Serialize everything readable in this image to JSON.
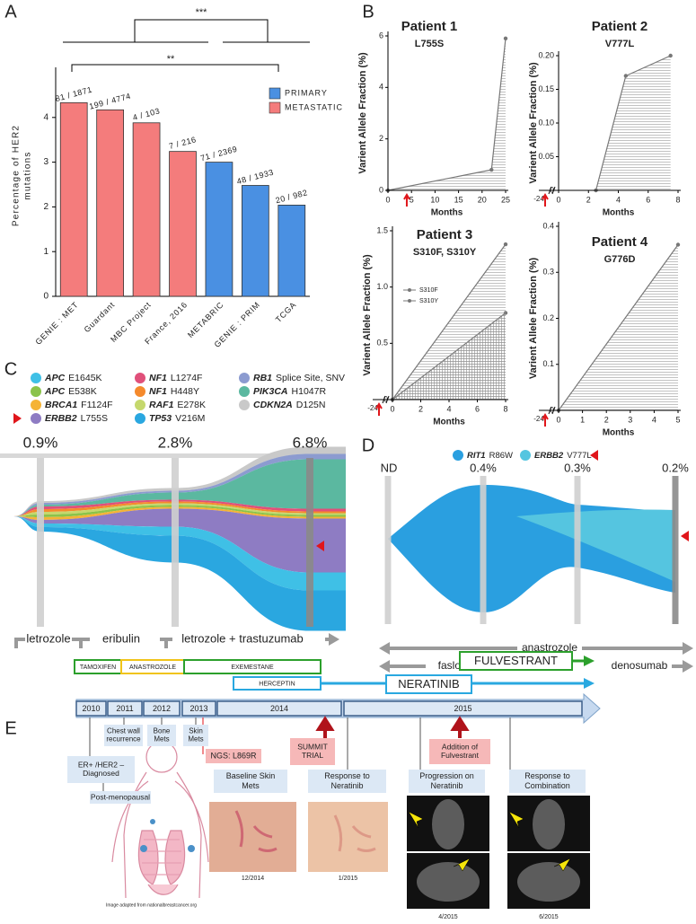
{
  "panel_labels": [
    "A",
    "B",
    "C",
    "D",
    "E"
  ],
  "chart_data": [
    {
      "type": "bar",
      "categories": [
        "GENIE : MET",
        "Guardant",
        "MBC Project",
        "France, 2016",
        "METABRIC",
        "GENIE : PRIM",
        "TCGA"
      ],
      "series": [
        {
          "name": "PRIMARY",
          "color": "#4a90e2",
          "values": [
            null,
            null,
            null,
            null,
            3.0,
            2.48,
            2.04
          ]
        },
        {
          "name": "METASTATIC",
          "color": "#f47c7c",
          "values": [
            4.33,
            4.17,
            3.88,
            3.24,
            null,
            null,
            null
          ]
        }
      ],
      "count_labels": [
        "81 / 1871",
        "199 / 4774",
        "4 / 103",
        "7 / 216",
        "71 / 2369",
        "48 / 1933",
        "20 / 982"
      ],
      "ylabel": [
        "Percentage of HER2",
        "mutations"
      ],
      "ylim": [
        0,
        5
      ],
      "yticks": [
        0,
        1,
        2,
        3,
        4
      ],
      "significance": [
        "***",
        "**"
      ],
      "legend_corner": "upper right"
    },
    {
      "type": "line",
      "title": "Patient 1",
      "subtitle": "L755S",
      "ylabel": "Varient Allele Fraction (%)",
      "xlabel": "Months",
      "xlim": [
        0,
        25
      ],
      "ylim": [
        0,
        6
      ],
      "xticks": [
        0,
        5,
        10,
        15,
        20,
        25
      ],
      "yticks": [
        0,
        2,
        4,
        6
      ],
      "series": [
        {
          "color": "#777777",
          "x": [
            0,
            22,
            25
          ],
          "values": [
            0,
            0.8,
            5.9
          ]
        }
      ]
    },
    {
      "type": "line",
      "title": "Patient 2",
      "subtitle": "V777L",
      "ylabel": "Varient Allele Fraction (%)",
      "xlabel": "Months",
      "break_label": "-24",
      "xlim": [
        0,
        8
      ],
      "ylim": [
        0,
        0.2
      ],
      "xticks": [
        0,
        2,
        4,
        6,
        8
      ],
      "yticks": [
        0,
        0.05,
        {
          "value": 0.1,
          "label": "0.10"
        },
        0.15,
        {
          "value": 0.2,
          "label": "0.20"
        }
      ],
      "series": [
        {
          "color": "#777777",
          "x": [
            2.5,
            4.5,
            7.5
          ],
          "values": [
            0,
            0.17,
            0.2
          ]
        }
      ]
    },
    {
      "type": "line",
      "title": "Patient 3",
      "subtitle": "S310F, S310Y",
      "ylabel": "Varient Allele Fraction (%)",
      "xlabel": "Months",
      "break_label": "-24",
      "xlim": [
        0,
        8
      ],
      "ylim": [
        0,
        1.5
      ],
      "xticks": [
        0,
        2,
        4,
        6,
        8
      ],
      "yticks": [
        0,
        0.5,
        {
          "value": 1,
          "label": "1.0"
        },
        1.5
      ],
      "series": [
        {
          "name": "S310F",
          "color": "#777777",
          "x": [
            0,
            8
          ],
          "values": [
            0,
            0.77
          ]
        },
        {
          "name": "S310Y",
          "color": "#777777",
          "x": [
            0,
            8
          ],
          "values": [
            0,
            1.38
          ]
        }
      ]
    },
    {
      "type": "line",
      "title": "Patient 4",
      "subtitle": "G776D",
      "ylabel": "Varient Allele Fraction (%)",
      "xlabel": "Months",
      "break_label": "-24",
      "xlim": [
        0,
        5
      ],
      "ylim": [
        0,
        0.4
      ],
      "xticks": [
        0,
        1,
        2,
        3,
        4,
        5
      ],
      "yticks": [
        0,
        0.1,
        0.2,
        0.3,
        0.4
      ],
      "series": [
        {
          "color": "#777777",
          "x": [
            0,
            5
          ],
          "values": [
            0,
            0.36
          ]
        }
      ]
    }
  ],
  "panel_c": {
    "legend": [
      {
        "gene": "APC",
        "mutation": "E1645K",
        "color": "#3fc0e6"
      },
      {
        "gene": "APC",
        "mutation": "E538K",
        "color": "#8bc34a"
      },
      {
        "gene": "BRCA1",
        "mutation": "F1124F",
        "color": "#f5b335"
      },
      {
        "gene": "ERBB2",
        "mutation": "L755S",
        "color": "#8e7cc3"
      },
      {
        "gene": "NF1",
        "mutation": "L1274F",
        "color": "#e0507a"
      },
      {
        "gene": "NF1",
        "mutation": "H448Y",
        "color": "#f58a2c"
      },
      {
        "gene": "RAF1",
        "mutation": "E278K",
        "color": "#c5d86d"
      },
      {
        "gene": "TP53",
        "mutation": "V216M",
        "color": "#2aa7e0"
      },
      {
        "gene": "RB1",
        "mutation": "Splice Site, SNV",
        "color": "#8c9bd0"
      },
      {
        "gene": "PIK3CA",
        "mutation": "H1047R",
        "color": "#5bb8a0"
      },
      {
        "gene": "CDKN2A",
        "mutation": "D125N",
        "color": "#c9c9c9"
      }
    ],
    "timepoints": [
      "0.9%",
      "2.8%",
      "6.8%"
    ],
    "treatments": [
      "letrozole",
      "eribulin",
      "letrozole + trastuzumab"
    ]
  },
  "panel_d": {
    "legend": [
      {
        "gene": "RIT1",
        "mutation": "R86W",
        "color": "#2a9fe0"
      },
      {
        "gene": "ERBB2",
        "mutation": "V777L",
        "color": "#55c5e0"
      }
    ],
    "timepoints": [
      "ND",
      "0.4%",
      "0.3%",
      "0.2%"
    ],
    "treatments": [
      "anastrozole",
      "faslodex",
      "denosumab"
    ]
  },
  "panel_e": {
    "drugs": [
      "TAMOXIFEN",
      "ANASTROZOLE",
      "EXEMESTANE",
      "HERCEPTIN",
      "NERATINIB",
      "FULVESTRANT"
    ],
    "years": [
      "2010",
      "2011",
      "2012",
      "2013",
      "2014",
      "2015"
    ],
    "events": [
      "ER+ /HER2 – Diagnosed",
      "Post-menopausal",
      "Chest wall recurrence",
      "Bone Mets",
      "Skin Mets",
      "NGS: L869R",
      "SUMMIT TRIAL",
      "Addition of Fulvestrant"
    ],
    "images": [
      {
        "title": "Baseline Skin Mets",
        "date": "12/2014"
      },
      {
        "title": "Response to Neratinib",
        "date": "1/2015"
      },
      {
        "title": "Progression on Neratinib",
        "date": "4/2015"
      },
      {
        "title": "Response to Combination",
        "date": "6/2015"
      }
    ],
    "credit": "Image adapted from nationalbreastcancer.org"
  }
}
